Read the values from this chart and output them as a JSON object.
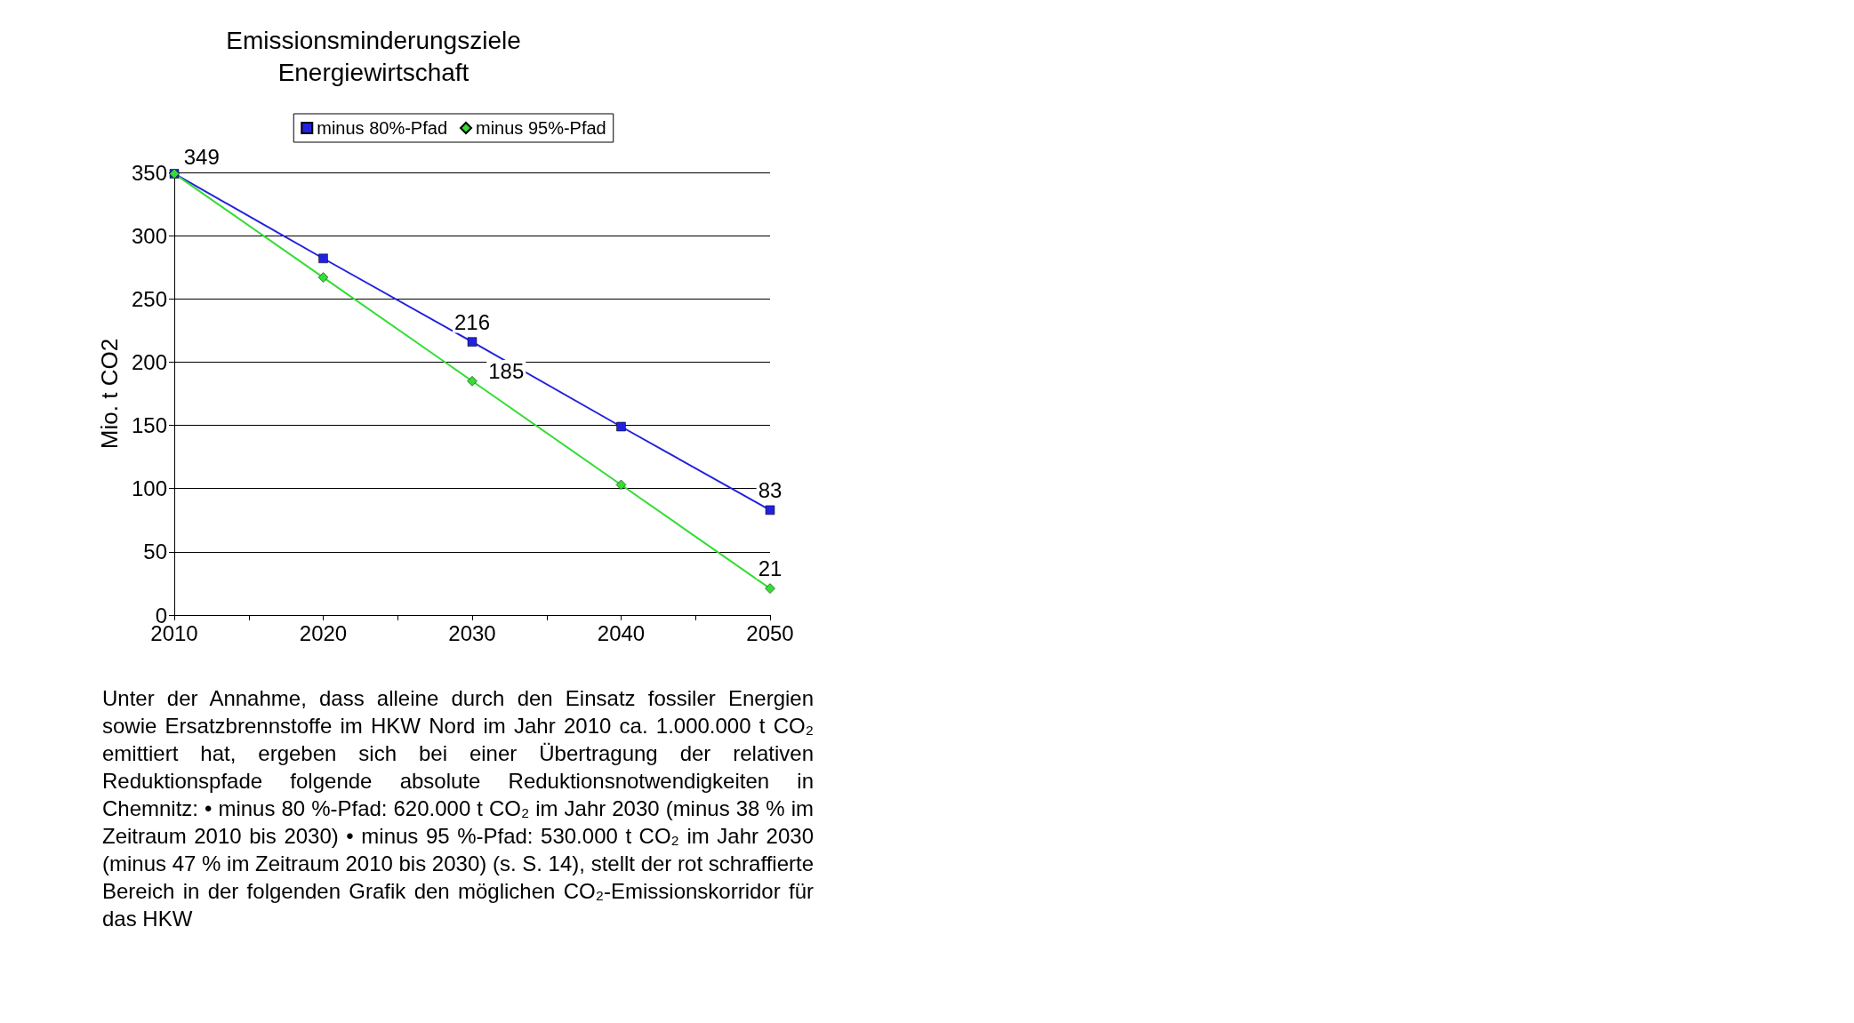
{
  "chart_data": {
    "type": "line",
    "title": "Emissionsminderungsziele\nEnergiewirtschaft",
    "ylabel": "Mio. t CO2",
    "x": [
      2010,
      2020,
      2030,
      2040,
      2050
    ],
    "series": [
      {
        "name": "minus 80%-Pfad",
        "color": "#2222dd",
        "marker": "square",
        "values": [
          349,
          282,
          216,
          149,
          83
        ],
        "value_labels": [
          "349",
          null,
          "216",
          null,
          "83"
        ]
      },
      {
        "name": "minus 95%-Pfad",
        "color": "#33dd33",
        "marker": "diamond",
        "values": [
          349,
          267,
          185,
          103,
          21
        ],
        "value_labels": [
          null,
          null,
          "185",
          null,
          "21"
        ]
      }
    ],
    "xlim": [
      2010,
      2050
    ],
    "xticks": [
      2010,
      {
        "value": 2015,
        "label": null
      },
      2020,
      {
        "value": 2025,
        "label": null
      },
      2030,
      {
        "value": 2035,
        "label": null
      },
      2040,
      {
        "value": 2045,
        "label": null
      },
      2050
    ],
    "ylim": [
      0,
      350
    ],
    "yticks": [
      0,
      50,
      100,
      150,
      200,
      250,
      300,
      350
    ],
    "grid": "y",
    "legend": "top",
    "line_style": "solid",
    "annotations": [
      "Unter der Annahme, dass alleine durch den Einsatz fossiler Energien sowie Ersatzbrennstoffe im HKW Nord im Jahr 2010 ca. 1.000.000 t CO₂ emittiert hat, ergeben sich bei einer Übertragung der relativen Reduktionspfade folgende absolute Reduktionsnotwendigkeiten in Chemnitz: • minus 80 %-Pfad: 620.000 t CO₂ im Jahr 2030 (minus 38 % im Zeitraum 2010 bis 2030) • minus 95 %-Pfad: 530.000 t CO₂ im Jahr 2030 (minus 47 % im Zeitraum 2010 bis 2030) (s. S. 14), stellt der rot schraffierte Bereich in der folgenden Grafik den möglichen CO₂-Emissionskorridor für das HKW"
    ]
  }
}
